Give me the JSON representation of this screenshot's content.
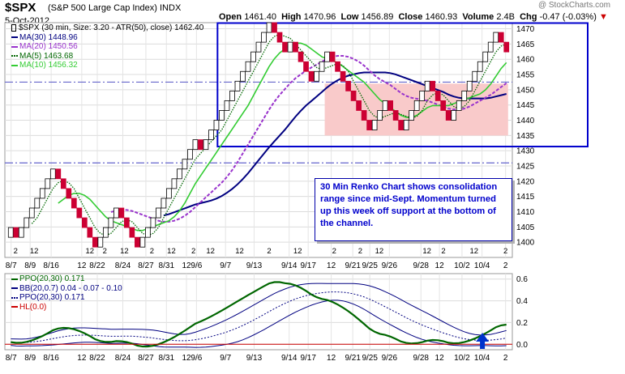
{
  "header": {
    "symbol": "$SPX",
    "name": "(S&P 500 Large Cap Index) INDX",
    "date": "5-Oct-2012",
    "open_label": "Open",
    "open": "1461.40",
    "high_label": "High",
    "high": "1470.96",
    "low_label": "Low",
    "low": "1456.89",
    "close_label": "Close",
    "close": "1460.93",
    "volume_label": "Volume",
    "volume": "2.4B",
    "chg_label": "Chg",
    "chg": "-0.47 (-0.03%)",
    "brand": "@ StockCharts.com"
  },
  "legend_main": [
    {
      "text": "$SPX (30 min, Size: 3.20 - ATR(50), close) 1462.40",
      "color": "#000000",
      "style": "box"
    },
    {
      "text": "MA(30) 1448.96",
      "color": "#000080",
      "style": "solid"
    },
    {
      "text": "MA(20) 1450.56",
      "color": "#9933cc",
      "style": "dashed"
    },
    {
      "text": "MA(5) 1463.68",
      "color": "#006600",
      "style": "dotted"
    },
    {
      "text": "MA(10) 1456.32",
      "color": "#33cc33",
      "style": "solid"
    }
  ],
  "legend_ind": [
    {
      "text": "PPO(20,30) 0.171",
      "color": "#006600",
      "style": "solid"
    },
    {
      "text": "BB(20,0.7) 0.04 - 0.07 - 0.10",
      "color": "#000080",
      "style": "solid"
    },
    {
      "text": "PPO(20,30) 0.171",
      "color": "#000080",
      "style": "dotted"
    },
    {
      "text": "HL(0.0)",
      "color": "#cc0000",
      "style": "solid"
    }
  ],
  "annotation": "30 Min Renko Chart shows consolidation range since mid-Sept.  Momentum turned up this week off support at the bottom of the channel.",
  "chart_data": [
    {
      "type": "renko",
      "title": "$SPX (30 min, Size: 3.20 - ATR(50), close) 1462.40",
      "ylim": [
        1395,
        1472
      ],
      "yticks": [
        1400,
        1405,
        1410,
        1415,
        1420,
        1425,
        1430,
        1435,
        1440,
        1445,
        1450,
        1455,
        1460,
        1465,
        1470
      ],
      "brick_size": 3.2,
      "bricks": [
        1404.8,
        1401.6,
        1404.8,
        1408,
        1411.2,
        1414.4,
        1417.6,
        1420.8,
        1424,
        1420.8,
        1417.6,
        1414.4,
        1411.2,
        1408,
        1404.8,
        1401.6,
        1398.4,
        1401.6,
        1404.8,
        1408,
        1411.2,
        1408,
        1404.8,
        1401.6,
        1398.4,
        1401.6,
        1404.8,
        1408,
        1411.2,
        1414.4,
        1417.6,
        1420.8,
        1424,
        1427.2,
        1430.4,
        1433.6,
        1430.4,
        1433.6,
        1436.8,
        1440,
        1443.2,
        1446.4,
        1449.6,
        1452.8,
        1456,
        1459.2,
        1462.4,
        1465.6,
        1468.8,
        1472,
        1468.8,
        1465.6,
        1462.4,
        1465.6,
        1462.4,
        1459.2,
        1456,
        1452.8,
        1456,
        1459.2,
        1462.4,
        1459.2,
        1456,
        1452.8,
        1449.6,
        1446.4,
        1443.2,
        1440,
        1436.8,
        1440,
        1443.2,
        1446.4,
        1443.2,
        1440,
        1436.8,
        1440,
        1443.2,
        1446.4,
        1449.6,
        1452.8,
        1449.6,
        1446.4,
        1443.2,
        1440,
        1443.2,
        1446.4,
        1449.6,
        1452.8,
        1456,
        1459.2,
        1462.4,
        1465.6,
        1468.8,
        1465.6,
        1462.4
      ],
      "x_tick_labels": [
        "8/7",
        "8/9",
        "8/16",
        "12",
        "8/22",
        "8/24",
        "8/27",
        "8/31",
        "12",
        "9/6",
        "9/7",
        "9/13",
        "9/14",
        "9/17",
        "12",
        "9/21",
        "9/25",
        "9/26",
        "9/28",
        "12",
        "10/2",
        "10/4",
        "2"
      ],
      "channel": {
        "upper": 1452.5,
        "lower": 1426
      },
      "consolidation_range": {
        "upper": 1452,
        "lower": 1435
      },
      "series": [
        {
          "name": "MA(30)",
          "last": 1448.96
        },
        {
          "name": "MA(20)",
          "last": 1450.56
        },
        {
          "name": "MA(5)",
          "last": 1463.68
        },
        {
          "name": "MA(10)",
          "last": 1456.32
        }
      ]
    },
    {
      "type": "line",
      "title": "PPO(20,30) 0.171",
      "ylim": [
        -0.05,
        0.65
      ],
      "yticks": [
        0.0,
        0.2,
        0.4,
        0.6
      ],
      "series": [
        {
          "name": "PPO(20,30)",
          "last": 0.171
        },
        {
          "name": "BB(20,0.7)",
          "last": [
            0.04,
            0.07,
            0.1
          ]
        },
        {
          "name": "HL(0.0)",
          "value": 0.0
        }
      ]
    }
  ],
  "colors": {
    "brick_up": "#ffffff",
    "brick_down": "#cc0033",
    "channel_box": "#0000cc",
    "channel_line": "#6666cc",
    "range_fill": "#f9caca",
    "arrow": "#0033cc"
  }
}
